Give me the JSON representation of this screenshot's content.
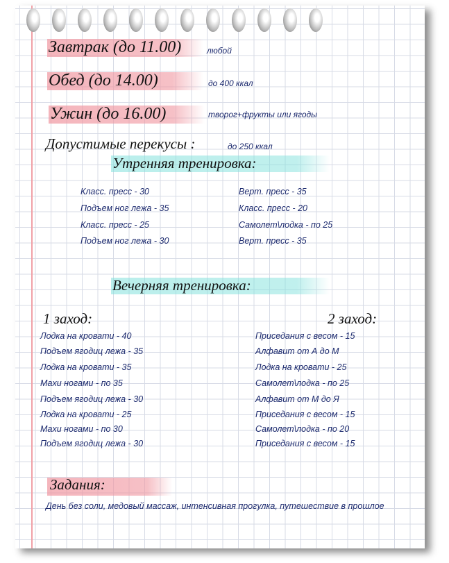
{
  "meals": [
    {
      "title": "Завтрак (до 11.00)",
      "note": "любой"
    },
    {
      "title": "Обед (до 14.00)",
      "note": "до 400 ккал"
    },
    {
      "title": "Ужин (до 16.00)",
      "note": "творог+фрукты или ягоды"
    }
  ],
  "snacks": {
    "title": "Допустимые перекусы :",
    "note": "до 250 ккал"
  },
  "morning": {
    "title": "Утренняя тренировка:",
    "left": [
      "Класс. пресс - 30",
      "Подъем ног лежа - 35",
      "Класс. пресс - 25",
      "Подъем ног лежа - 30"
    ],
    "right": [
      "Верт. пресс - 35",
      "Класс. пресс - 20",
      "Самолет\\лодка - по 25",
      "Верт. пресс - 35"
    ]
  },
  "evening": {
    "title": "Вечерняя тренировка:",
    "set1_title": "1 заход:",
    "set2_title": "2 заход:",
    "set1": [
      "Лодка на кровати - 40",
      "Подъем ягодиц лежа - 35",
      "Лодка на кровати - 35",
      "Махи ногами - по 35",
      "Подъем ягодиц лежа - 30",
      "Лодка на кровати - 25",
      "Махи ногами - по 30",
      "Подъем ягодиц лежа - 30"
    ],
    "set2": [
      "Приседания с весом - 15",
      "Алфавит от А до М",
      "Лодка на кровати - 25",
      "Самолет\\лодка - по 25",
      "Алфавит от М до Я",
      "Приседания с весом - 15",
      "Самолет\\лодка - по 20",
      "Приседания с весом - 15"
    ]
  },
  "tasks": {
    "title": "Задания:",
    "text": "День без соли, медовый массаж, интенсивная прогулка, путешествие в прошлое"
  },
  "colors": {
    "highlight_pink": "#f096a0",
    "highlight_cyan": "#82e1dc",
    "text_blue": "#1c2a6e",
    "margin_line": "#f0a0a6"
  }
}
